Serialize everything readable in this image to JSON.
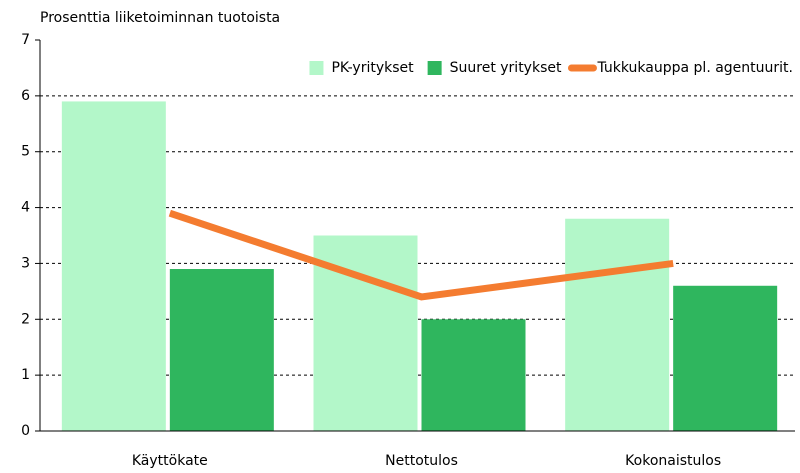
{
  "chart_data": {
    "type": "bar",
    "y_axis_label": "Prosenttia liiketoiminnan tuotoista",
    "categories": [
      "Käyttökate",
      "Nettotulos",
      "Kokonaistulos"
    ],
    "series": [
      {
        "name": "PK-yritykset",
        "color": "#b3f7c9",
        "values": [
          5.9,
          3.5,
          3.8
        ]
      },
      {
        "name": "Suuret yritykset",
        "color": "#2fb65e",
        "values": [
          2.9,
          2.0,
          2.6
        ]
      },
      {
        "name": "Tukkukauppa pl. agentuurit.",
        "color": "#f47c30",
        "type": "line",
        "values": [
          3.9,
          2.4,
          3.0
        ]
      }
    ],
    "ylim": [
      0,
      7
    ],
    "yticks": [
      0,
      1,
      2,
      3,
      4,
      5,
      6,
      7
    ],
    "grid": true,
    "legend": "top-right"
  }
}
